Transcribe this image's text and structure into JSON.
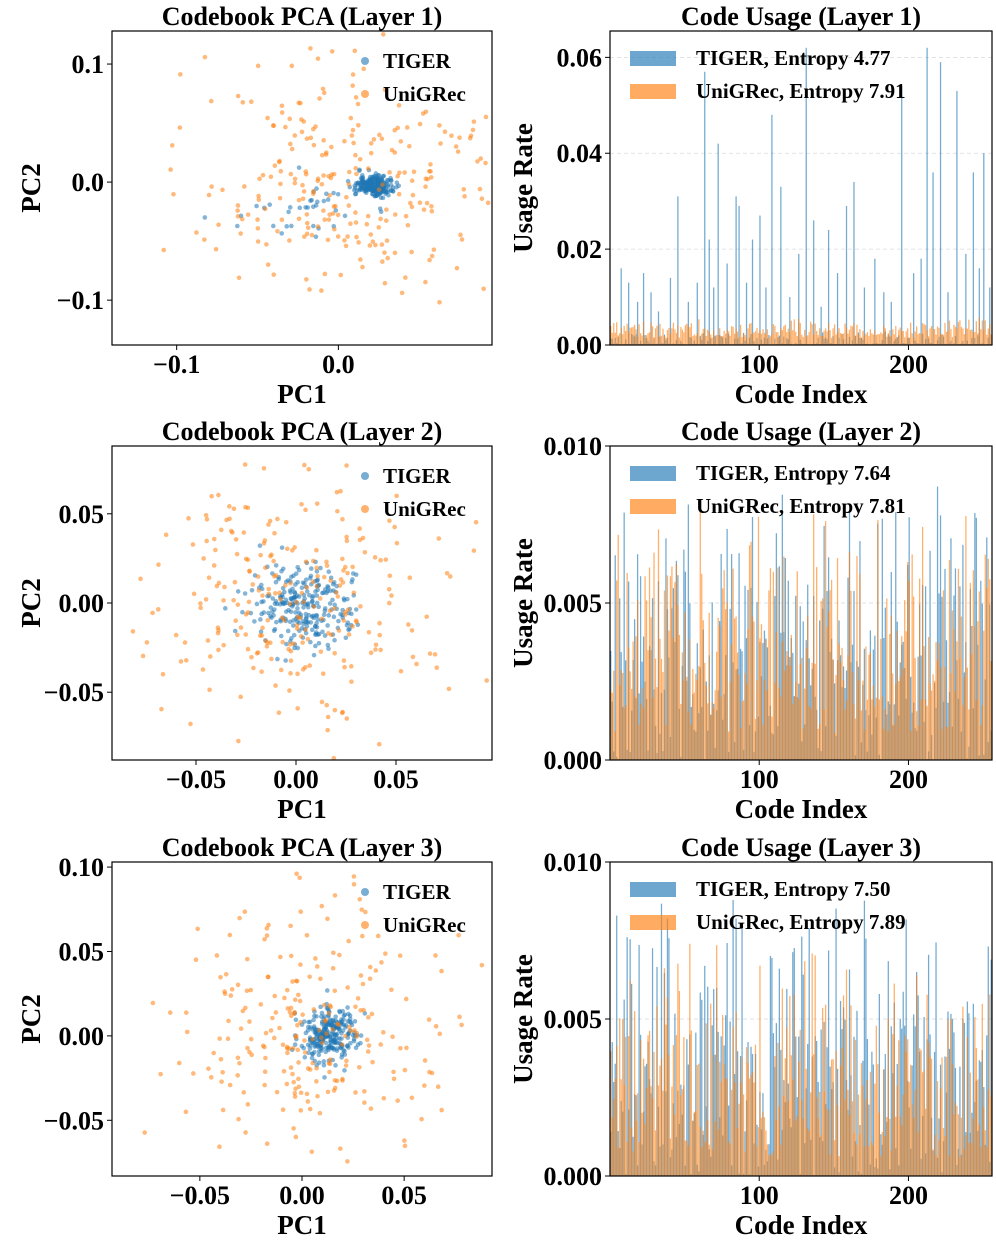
{
  "colors": {
    "tiger": "#1f77b4",
    "unigrec": "#ff7f0e"
  },
  "chart_data": [
    {
      "type": "scatter",
      "title": "Codebook PCA (Layer 1)",
      "xlabel": "PC1",
      "ylabel": "PC2",
      "xlim": [
        -0.14,
        0.095
      ],
      "ylim": [
        -0.138,
        0.128
      ],
      "xticks": [
        -0.1,
        0.0
      ],
      "xtick_labels": [
        "−0.1",
        "0.0"
      ],
      "yticks": [
        -0.1,
        0.0,
        0.1
      ],
      "ytick_labels": [
        "−0.1",
        "0.0",
        "0.1"
      ],
      "legend": [
        "TIGER",
        "UniGRec"
      ],
      "legend_loc": "top-right",
      "series": [
        {
          "name": "TIGER",
          "n": 256,
          "clusters": [
            {
              "cx": 0.022,
              "cy": -0.003,
              "sx": 0.006,
              "sy": 0.0045,
              "w": 0.86
            },
            {
              "cx": -0.018,
              "cy": -0.022,
              "sx": 0.02,
              "sy": 0.011,
              "w": 0.14
            }
          ]
        },
        {
          "name": "UniGRec",
          "n": 256,
          "clusters": [
            {
              "cx": 0.0,
              "cy": 0.0,
              "sx": 0.048,
              "sy": 0.052,
              "w": 1.0
            }
          ]
        }
      ]
    },
    {
      "type": "bar",
      "title": "Code Usage (Layer 1)",
      "xlabel": "Code Index",
      "ylabel": "Usage Rate",
      "xlim": [
        0,
        256
      ],
      "ylim": [
        0,
        0.0655
      ],
      "xticks": [
        100,
        200
      ],
      "xtick_labels": [
        "100",
        "200"
      ],
      "yticks": [
        0.0,
        0.02,
        0.04,
        0.06
      ],
      "ytick_labels": [
        "0.00",
        "0.02",
        "0.04",
        "0.06"
      ],
      "legend": [
        "TIGER, Entropy 4.77",
        "UniGRec, Entropy 7.91"
      ],
      "legend_loc": "top-left",
      "series": [
        {
          "name": "TIGER",
          "entropy": 4.77,
          "n": 256,
          "base": 0.0008,
          "spread": 0.0022,
          "sparsity": 0.55,
          "peaks": [
            [
              7,
              0.016
            ],
            [
              12,
              0.013
            ],
            [
              18,
              0.009
            ],
            [
              22,
              0.015
            ],
            [
              27,
              0.011
            ],
            [
              32,
              0.007
            ],
            [
              40,
              0.014
            ],
            [
              45,
              0.031
            ],
            [
              52,
              0.009
            ],
            [
              58,
              0.013
            ],
            [
              63,
              0.057
            ],
            [
              66,
              0.022
            ],
            [
              69,
              0.012
            ],
            [
              72,
              0.042
            ],
            [
              78,
              0.017
            ],
            [
              84,
              0.031
            ],
            [
              86,
              0.029
            ],
            [
              91,
              0.013
            ],
            [
              95,
              0.022
            ],
            [
              100,
              0.027
            ],
            [
              104,
              0.012
            ],
            [
              108,
              0.048
            ],
            [
              114,
              0.033
            ],
            [
              120,
              0.01
            ],
            [
              126,
              0.019
            ],
            [
              131,
              0.062
            ],
            [
              136,
              0.026
            ],
            [
              141,
              0.008
            ],
            [
              146,
              0.024
            ],
            [
              152,
              0.015
            ],
            [
              158,
              0.029
            ],
            [
              163,
              0.034
            ],
            [
              170,
              0.012
            ],
            [
              177,
              0.018
            ],
            [
              183,
              0.011
            ],
            [
              188,
              0.009
            ],
            [
              195,
              0.054
            ],
            [
              203,
              0.015
            ],
            [
              208,
              0.018
            ],
            [
              212,
              0.062
            ],
            [
              216,
              0.036
            ],
            [
              221,
              0.059
            ],
            [
              226,
              0.011
            ],
            [
              232,
              0.053
            ],
            [
              238,
              0.019
            ],
            [
              243,
              0.036
            ],
            [
              247,
              0.016
            ],
            [
              250,
              0.04
            ],
            [
              254,
              0.012
            ]
          ]
        },
        {
          "name": "UniGRec",
          "entropy": 7.91,
          "n": 256,
          "base": 0.0015,
          "spread": 0.0045,
          "sparsity": 0.0,
          "peaks": []
        }
      ]
    },
    {
      "type": "scatter",
      "title": "Codebook PCA (Layer 2)",
      "xlabel": "PC1",
      "ylabel": "PC2",
      "xlim": [
        -0.092,
        0.098
      ],
      "ylim": [
        -0.088,
        0.088
      ],
      "xticks": [
        -0.05,
        0.0,
        0.05
      ],
      "xtick_labels": [
        "−0.05",
        "0.00",
        "0.05"
      ],
      "yticks": [
        -0.05,
        0.0,
        0.05
      ],
      "ytick_labels": [
        "−0.05",
        "0.00",
        "0.05"
      ],
      "legend": [
        "TIGER",
        "UniGRec"
      ],
      "legend_loc": "top-right",
      "series": [
        {
          "name": "TIGER",
          "n": 256,
          "clusters": [
            {
              "cx": 0.004,
              "cy": -0.002,
              "sx": 0.014,
              "sy": 0.013,
              "w": 1.0
            }
          ]
        },
        {
          "name": "UniGRec",
          "n": 256,
          "clusters": [
            {
              "cx": 0.0,
              "cy": 0.0,
              "sx": 0.035,
              "sy": 0.034,
              "w": 1.0
            }
          ]
        }
      ]
    },
    {
      "type": "bar",
      "title": "Code Usage (Layer 2)",
      "xlabel": "Code Index",
      "ylabel": "Usage Rate",
      "xlim": [
        0,
        256
      ],
      "ylim": [
        0,
        0.01
      ],
      "xticks": [
        100,
        200
      ],
      "xtick_labels": [
        "100",
        "200"
      ],
      "yticks": [
        0.0,
        0.005,
        0.01
      ],
      "ytick_labels": [
        "0.000",
        "0.005",
        "0.010"
      ],
      "legend": [
        "TIGER, Entropy 7.64",
        "UniGRec, Entropy 7.81"
      ],
      "legend_loc": "top-left",
      "series": [
        {
          "name": "TIGER",
          "entropy": 7.64,
          "n": 256,
          "base": 0.0,
          "spread": 0.0092,
          "sparsity": 0.0,
          "peaks": []
        },
        {
          "name": "UniGRec",
          "entropy": 7.81,
          "n": 256,
          "base": 0.0008,
          "spread": 0.0076,
          "sparsity": 0.0,
          "peaks": []
        }
      ]
    },
    {
      "type": "scatter",
      "title": "Codebook PCA (Layer 3)",
      "xlabel": "PC1",
      "ylabel": "PC2",
      "xlim": [
        -0.093,
        0.093
      ],
      "ylim": [
        -0.083,
        0.103
      ],
      "xticks": [
        -0.05,
        0.0,
        0.05
      ],
      "xtick_labels": [
        "−0.05",
        "0.00",
        "0.05"
      ],
      "yticks": [
        -0.05,
        0.0,
        0.05,
        0.1
      ],
      "ytick_labels": [
        "−0.05",
        "0.00",
        "0.05",
        "0.10"
      ],
      "legend": [
        "TIGER",
        "UniGRec"
      ],
      "legend_loc": "top-right",
      "series": [
        {
          "name": "TIGER",
          "n": 256,
          "clusters": [
            {
              "cx": 0.012,
              "cy": 0.001,
              "sx": 0.007,
              "sy": 0.008,
              "w": 1.0
            }
          ]
        },
        {
          "name": "UniGRec",
          "n": 256,
          "clusters": [
            {
              "cx": 0.0,
              "cy": 0.003,
              "sx": 0.034,
              "sy": 0.036,
              "w": 1.0
            }
          ]
        }
      ]
    },
    {
      "type": "bar",
      "title": "Code Usage (Layer 3)",
      "xlabel": "Code Index",
      "ylabel": "Usage Rate",
      "xlim": [
        0,
        256
      ],
      "ylim": [
        0,
        0.01
      ],
      "xticks": [
        100,
        200
      ],
      "xtick_labels": [
        "100",
        "200"
      ],
      "yticks": [
        0.0,
        0.005,
        0.01
      ],
      "ytick_labels": [
        "0.000",
        "0.005",
        "0.010"
      ],
      "legend": [
        "TIGER, Entropy 7.50",
        "UniGRec, Entropy 7.89"
      ],
      "legend_loc": "top-left",
      "series": [
        {
          "name": "TIGER",
          "entropy": 7.5,
          "n": 256,
          "base": 0.0,
          "spread": 0.0098,
          "sparsity": 0.0,
          "peaks": []
        },
        {
          "name": "UniGRec",
          "entropy": 7.89,
          "n": 256,
          "base": 0.0006,
          "spread": 0.0072,
          "sparsity": 0.0,
          "peaks": []
        }
      ]
    }
  ]
}
